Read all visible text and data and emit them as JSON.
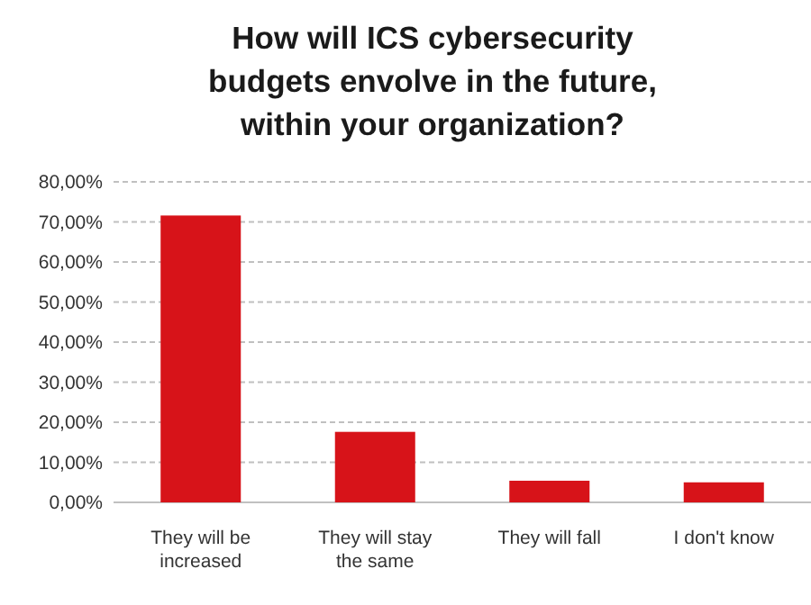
{
  "chart_data": {
    "type": "bar",
    "title": "How will ICS cybersecurity budgets envolve in the future, within your organization?",
    "categories": [
      "They will be increased",
      "They will stay the same",
      "They will fall",
      "I don't know"
    ],
    "values": [
      71.6,
      17.6,
      5.4,
      5.0
    ],
    "color": "#d71319",
    "ylim": [
      0,
      80
    ],
    "yticks": [
      {
        "value": 0,
        "label": "0,00%"
      },
      {
        "value": 10,
        "label": "10,00%"
      },
      {
        "value": 20,
        "label": "20,00%"
      },
      {
        "value": 30,
        "label": "30,00%"
      },
      {
        "value": 40,
        "label": "40,00%"
      },
      {
        "value": 50,
        "label": "50,00%"
      },
      {
        "value": 60,
        "label": "60,00%"
      },
      {
        "value": 70,
        "label": "70,00%"
      },
      {
        "value": 80,
        "label": "80,00%"
      }
    ],
    "grid": "y"
  }
}
